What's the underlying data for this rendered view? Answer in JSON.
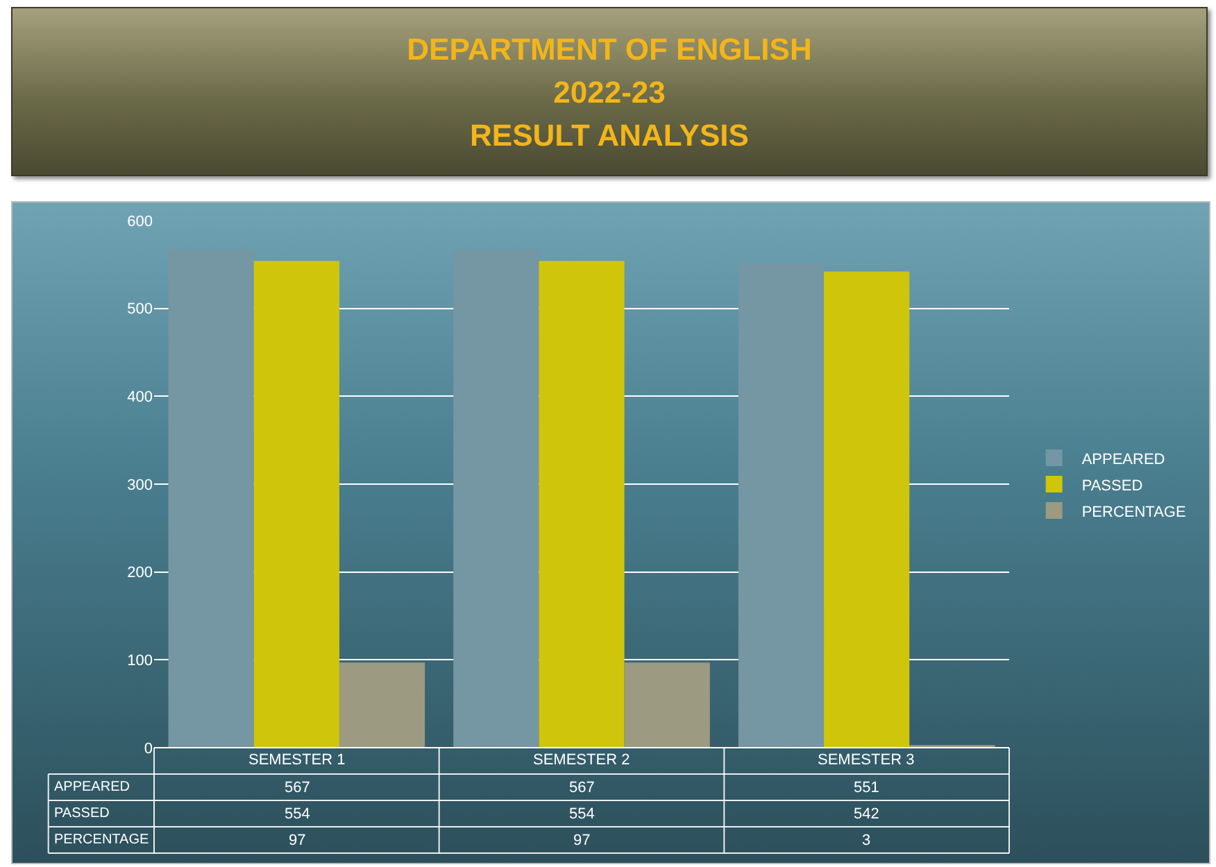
{
  "chart_data": {
    "type": "bar",
    "title": "DEPARTMENT OF ENGLISH\n2022-23\nRESULT ANALYSIS",
    "categories": [
      "SEMESTER 1",
      "SEMESTER 2",
      "SEMESTER 3"
    ],
    "series": [
      {
        "name": "APPEARED",
        "color": "#7596a3",
        "values": [
          567,
          567,
          551
        ]
      },
      {
        "name": "PASSED",
        "color": "#cfc60c",
        "values": [
          554,
          554,
          542
        ]
      },
      {
        "name": "PERCENTAGE",
        "color": "#9c9a80",
        "values": [
          97,
          97,
          3
        ]
      }
    ],
    "ylim": [
      0,
      600
    ],
    "yticks": [
      0,
      100,
      200,
      300,
      400,
      500,
      600
    ],
    "grid": "y",
    "legend": "right",
    "data_labels": true
  }
}
